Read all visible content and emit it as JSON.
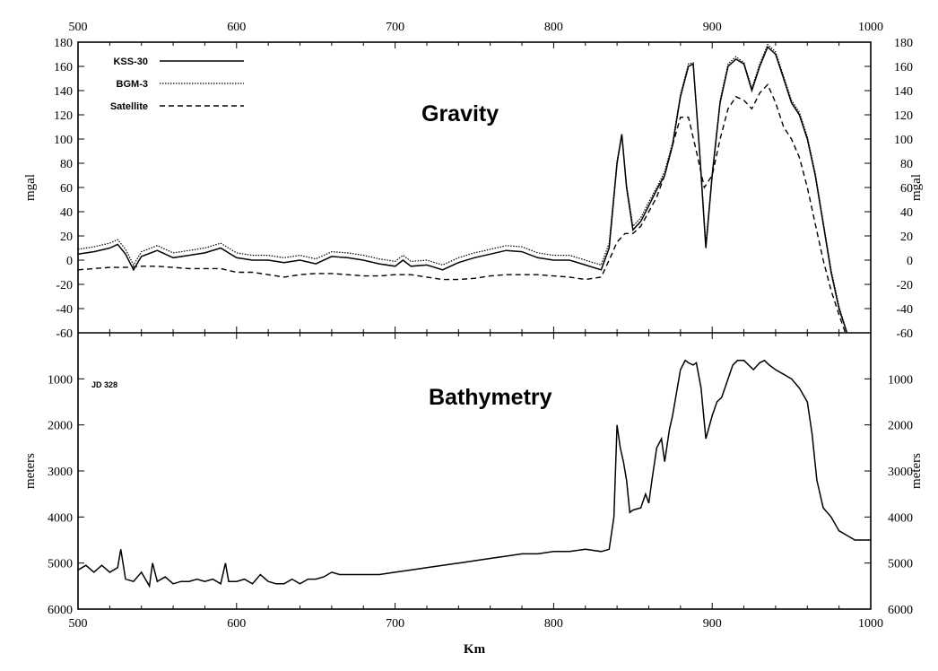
{
  "chart_data": [
    {
      "type": "line",
      "title": "Gravity",
      "ylabel": "mgal",
      "xlabel": "",
      "xlim": [
        500,
        1000
      ],
      "ylim": [
        -60,
        180
      ],
      "xticks": [
        "500",
        "600",
        "700",
        "800",
        "900",
        "1000"
      ],
      "yticks_left": [
        "-60",
        "-40",
        "-20",
        "0",
        "20",
        "40",
        "60",
        "80",
        "100",
        "120",
        "140",
        "160",
        "180"
      ],
      "yticks_right": [
        "-60",
        "-40",
        "-20",
        "0",
        "20",
        "40",
        "60",
        "80",
        "100",
        "120",
        "140",
        "160",
        "180"
      ],
      "grid": false,
      "legend_position": "top-left",
      "series": [
        {
          "name": "KSS-30",
          "style": "solid",
          "x": [
            500,
            510,
            520,
            525,
            530,
            535,
            540,
            550,
            560,
            570,
            580,
            590,
            600,
            610,
            620,
            630,
            640,
            650,
            660,
            670,
            680,
            690,
            700,
            705,
            710,
            720,
            730,
            740,
            750,
            760,
            770,
            780,
            790,
            800,
            810,
            820,
            830,
            835,
            840,
            843,
            846,
            850,
            855,
            860,
            865,
            870,
            875,
            880,
            885,
            888,
            892,
            896,
            900,
            905,
            910,
            915,
            920,
            925,
            930,
            935,
            940,
            945,
            950,
            955,
            960,
            965,
            970,
            975,
            980,
            985
          ],
          "y": [
            5,
            7,
            10,
            13,
            5,
            -8,
            3,
            8,
            2,
            4,
            6,
            10,
            2,
            0,
            0,
            -2,
            0,
            -3,
            3,
            2,
            0,
            -3,
            -5,
            0,
            -5,
            -4,
            -8,
            -2,
            2,
            5,
            8,
            7,
            2,
            0,
            0,
            -4,
            -8,
            10,
            80,
            104,
            60,
            25,
            32,
            45,
            58,
            70,
            95,
            135,
            160,
            162,
            90,
            10,
            70,
            130,
            160,
            166,
            162,
            140,
            160,
            176,
            170,
            150,
            130,
            120,
            100,
            70,
            30,
            -10,
            -40,
            -60
          ]
        },
        {
          "name": "BGM-3",
          "style": "dotted",
          "x": [
            500,
            510,
            520,
            525,
            530,
            535,
            540,
            550,
            560,
            570,
            580,
            590,
            600,
            610,
            620,
            630,
            640,
            650,
            660,
            670,
            680,
            690,
            700,
            705,
            710,
            720,
            730,
            740,
            750,
            760,
            770,
            780,
            790,
            800,
            810,
            820,
            830,
            835,
            840,
            843,
            846,
            850,
            855,
            860,
            865,
            870,
            875,
            880,
            885,
            888,
            892,
            896,
            900,
            905,
            910,
            915,
            920,
            925,
            930,
            935,
            940,
            945,
            950,
            955,
            960,
            965,
            970,
            975,
            980,
            985
          ],
          "y": [
            9,
            11,
            14,
            17,
            9,
            -4,
            7,
            12,
            6,
            8,
            10,
            14,
            6,
            4,
            4,
            2,
            4,
            1,
            7,
            6,
            4,
            1,
            -1,
            4,
            -1,
            0,
            -4,
            2,
            6,
            9,
            12,
            11,
            6,
            4,
            4,
            0,
            -4,
            14,
            82,
            104,
            62,
            28,
            35,
            48,
            60,
            73,
            97,
            137,
            162,
            163,
            92,
            13,
            72,
            132,
            162,
            168,
            163,
            142,
            162,
            178,
            172,
            152,
            132,
            122,
            102,
            72,
            32,
            -8,
            -38,
            -60
          ]
        },
        {
          "name": "Satellite",
          "style": "dashed",
          "x": [
            500,
            510,
            520,
            530,
            540,
            550,
            560,
            570,
            580,
            590,
            600,
            610,
            620,
            630,
            640,
            650,
            660,
            670,
            680,
            690,
            700,
            710,
            720,
            730,
            740,
            750,
            760,
            770,
            780,
            790,
            800,
            810,
            820,
            830,
            835,
            840,
            845,
            850,
            855,
            860,
            865,
            870,
            875,
            880,
            885,
            890,
            895,
            900,
            905,
            910,
            915,
            920,
            925,
            930,
            935,
            940,
            945,
            950,
            955,
            960,
            965,
            970,
            975,
            980,
            984
          ],
          "y": [
            -8,
            -7,
            -6,
            -6,
            -5,
            -5,
            -6,
            -7,
            -7,
            -7,
            -10,
            -10,
            -12,
            -14,
            -12,
            -11,
            -11,
            -12,
            -13,
            -13,
            -12,
            -12,
            -14,
            -16,
            -16,
            -15,
            -13,
            -12,
            -12,
            -12,
            -13,
            -14,
            -16,
            -14,
            0,
            15,
            22,
            22,
            28,
            40,
            52,
            70,
            95,
            118,
            118,
            90,
            60,
            70,
            100,
            125,
            135,
            132,
            125,
            138,
            145,
            130,
            110,
            100,
            85,
            60,
            30,
            0,
            -25,
            -45,
            -60
          ]
        }
      ]
    },
    {
      "type": "line",
      "title": "Bathymetry",
      "ylabel": "meters",
      "xlabel": "Km",
      "annotation": "JD 328",
      "xlim": [
        500,
        1000
      ],
      "ylim": [
        6000,
        0
      ],
      "y_inverted": true,
      "xticks": [
        "500",
        "600",
        "700",
        "800",
        "900",
        "1000"
      ],
      "yticks_left": [
        "1000",
        "2000",
        "3000",
        "4000",
        "5000",
        "6000"
      ],
      "yticks_right": [
        "1000",
        "2000",
        "3000",
        "4000",
        "5000",
        "6000"
      ],
      "grid": false,
      "series": [
        {
          "name": "",
          "style": "solid",
          "x": [
            500,
            505,
            510,
            515,
            520,
            525,
            527,
            530,
            535,
            540,
            545,
            547,
            550,
            555,
            560,
            565,
            570,
            575,
            580,
            585,
            590,
            593,
            595,
            600,
            605,
            610,
            615,
            620,
            625,
            630,
            635,
            640,
            645,
            650,
            655,
            660,
            665,
            670,
            680,
            690,
            700,
            710,
            720,
            730,
            740,
            750,
            760,
            770,
            780,
            790,
            800,
            810,
            820,
            830,
            835,
            838,
            840,
            842,
            844,
            846,
            848,
            850,
            855,
            858,
            860,
            862,
            865,
            868,
            870,
            873,
            875,
            878,
            880,
            883,
            885,
            888,
            890,
            893,
            896,
            900,
            903,
            906,
            910,
            913,
            916,
            920,
            923,
            926,
            930,
            933,
            936,
            940,
            945,
            950,
            955,
            960,
            963,
            966,
            970,
            975,
            980,
            985,
            990,
            995,
            1000
          ],
          "y": [
            5150,
            5050,
            5200,
            5050,
            5200,
            5100,
            4700,
            5350,
            5400,
            5200,
            5500,
            5000,
            5400,
            5300,
            5450,
            5400,
            5400,
            5350,
            5400,
            5350,
            5450,
            5000,
            5400,
            5400,
            5350,
            5450,
            5250,
            5400,
            5450,
            5450,
            5350,
            5450,
            5350,
            5350,
            5300,
            5200,
            5250,
            5250,
            5250,
            5250,
            5200,
            5150,
            5100,
            5050,
            5000,
            4950,
            4900,
            4850,
            4800,
            4800,
            4750,
            4750,
            4700,
            4750,
            4700,
            4000,
            2000,
            2500,
            2800,
            3200,
            3900,
            3850,
            3800,
            3500,
            3700,
            3200,
            2500,
            2300,
            2800,
            2100,
            1800,
            1200,
            800,
            600,
            650,
            700,
            650,
            1200,
            2300,
            1800,
            1500,
            1400,
            1000,
            700,
            600,
            600,
            700,
            800,
            650,
            600,
            700,
            800,
            900,
            1000,
            1200,
            1500,
            2200,
            3200,
            3800,
            4000,
            4300,
            4400,
            4500,
            4500,
            4500
          ]
        }
      ]
    }
  ]
}
